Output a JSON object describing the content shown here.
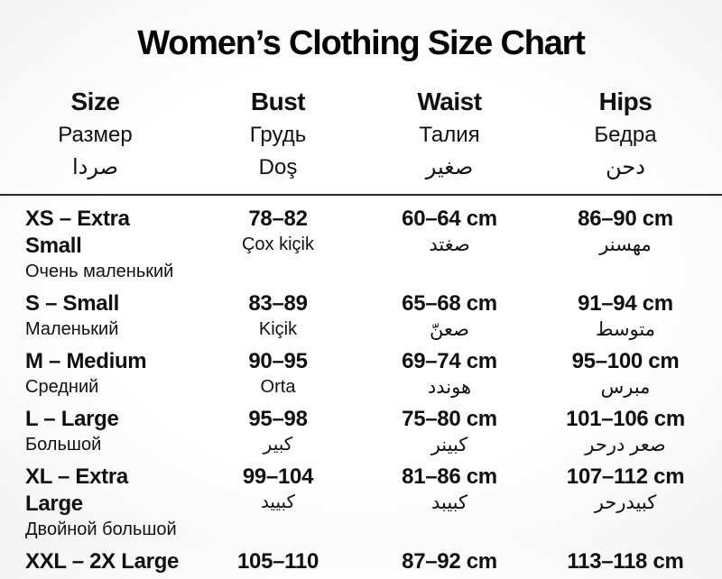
{
  "chart_data": {
    "type": "table",
    "title": "Women’s Clothing Size Chart",
    "columns": [
      {
        "en": "Size",
        "ru": "Размер",
        "ar": "صردا"
      },
      {
        "en": "Bust",
        "ru": "Грудь",
        "ar": "Doş"
      },
      {
        "en": "Waist",
        "ru": "Талия",
        "ar": "صغير"
      },
      {
        "en": "Hips",
        "ru": "Бедра",
        "ar": "دحن"
      }
    ],
    "rows": [
      {
        "size": "XS – Extra Small",
        "size_sub": "Очень маленький",
        "bust": "78–82",
        "bust_sub": "Çox kiçik",
        "waist": "60–64 cm",
        "waist_sub": "صغتد",
        "hips": "86–90 cm",
        "hips_sub": "مهسنر"
      },
      {
        "size": "S – Small",
        "size_sub": "Маленький",
        "bust": "83–89",
        "bust_sub": "Kiçik",
        "waist": "65–68 cm",
        "waist_sub": "صعنّ",
        "hips": "91–94 cm",
        "hips_sub": "متوسط"
      },
      {
        "size": "M – Medium",
        "size_sub": "Средний",
        "bust": "90–95",
        "bust_sub": "Orta",
        "waist": "69–74 cm",
        "waist_sub": "هوندد",
        "hips": "95–100 cm",
        "hips_sub": "مبرس"
      },
      {
        "size": "L – Large",
        "size_sub": "Большой",
        "bust": "95–98",
        "bust_sub": "كبير",
        "waist": "75–80 cm",
        "waist_sub": "كبينر",
        "hips": "101–106 cm",
        "hips_sub": "صعر درحر"
      },
      {
        "size": "XL – Extra Large",
        "size_sub": "Двойной большой",
        "bust": "99–104",
        "bust_sub": "كبييد",
        "waist": "81–86 cm",
        "waist_sub": "كبيبد",
        "hips": "107–112 cm",
        "hips_sub": "كبيدرحر"
      },
      {
        "size": "XXL – 2X Large",
        "size_sub": "",
        "bust": "105–110",
        "bust_sub": "",
        "waist": "87–92 cm",
        "waist_sub": "",
        "hips": "113–118 cm",
        "hips_sub": ""
      }
    ]
  }
}
